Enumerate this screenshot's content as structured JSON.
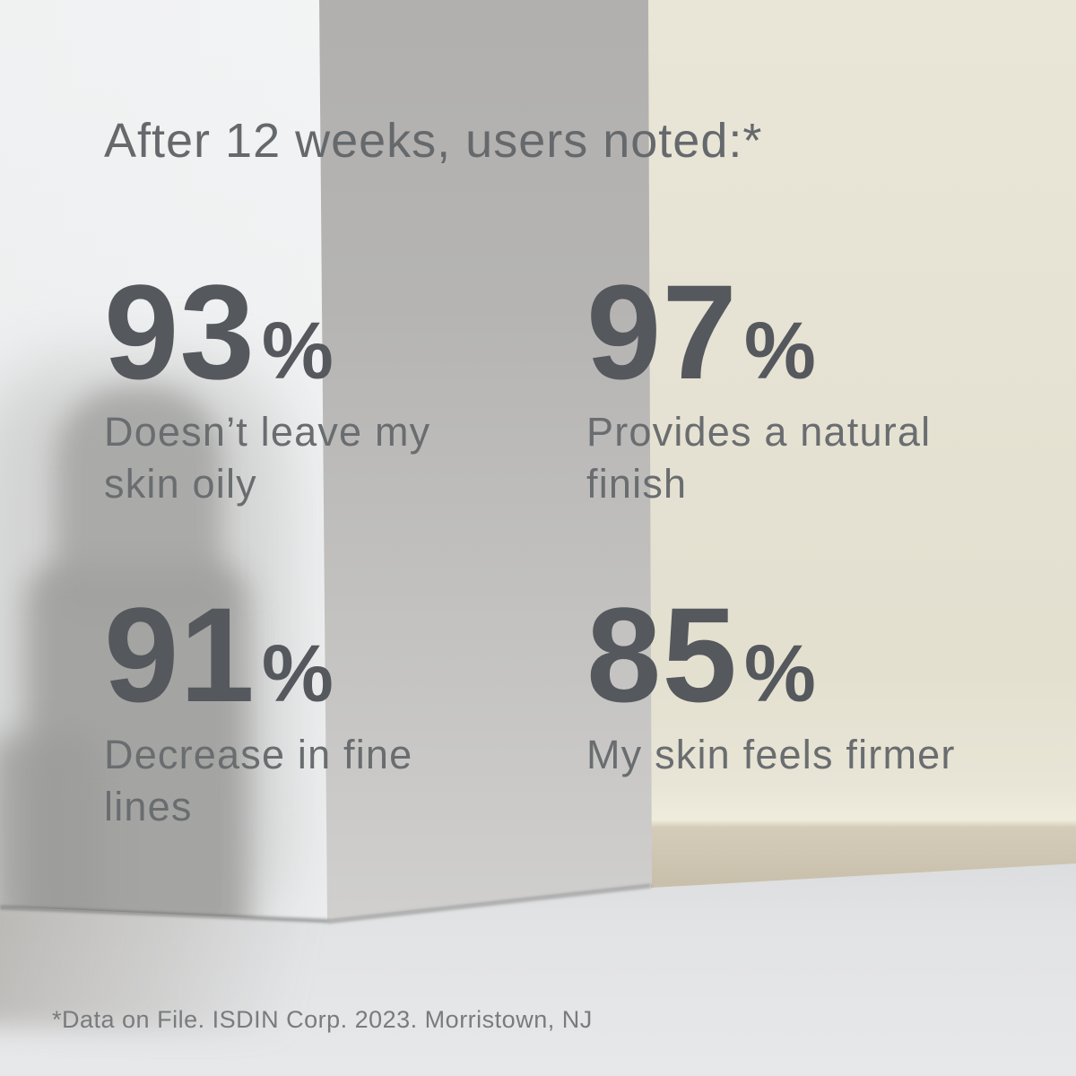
{
  "headline": "After 12 weeks, users noted:*",
  "stats": [
    {
      "value": "93",
      "unit": "%",
      "lines": [
        "Doesn’t leave my",
        "skin oily"
      ]
    },
    {
      "value": "97",
      "unit": "%",
      "lines": [
        "Provides a natural",
        "finish"
      ]
    },
    {
      "value": "91",
      "unit": "%",
      "lines": [
        "Decrease in fine",
        "lines"
      ]
    },
    {
      "value": "85",
      "unit": "%",
      "lines": [
        "My skin feels firmer",
        ""
      ]
    }
  ],
  "footnote": "*Data on File. ISDIN Corp. 2023. Morristown, NJ",
  "colors": {
    "stat_number": "#55585d",
    "caption": "#6a6d70",
    "headline": "#66696c",
    "footnote": "#797b7d",
    "wall_cream": "#e5e1d2",
    "wall_baseboard_tan": "#c9c0ac",
    "box_shaded_face": "#b7b6b4",
    "box_lit_face": "#f3f4f5",
    "bottle_shadow": "#a2a2a0",
    "floor": "#e2e3e5"
  }
}
